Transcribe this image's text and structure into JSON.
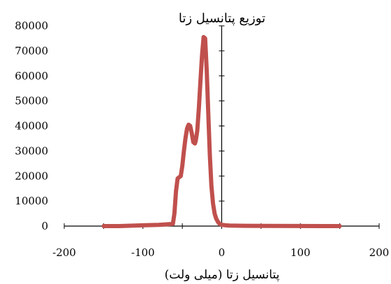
{
  "chart_data": {
    "type": "line",
    "title": "توزیع پتانسیل زتا",
    "xlabel": "پتانسیل زتا (میلی ولت)",
    "ylabel": "",
    "xlim": [
      -200,
      200
    ],
    "ylim": [
      0,
      80000
    ],
    "x_ticks": [
      "-200",
      "-100",
      "0",
      "100",
      "200"
    ],
    "y_ticks": [
      "0",
      "10000",
      "20000",
      "30000",
      "40000",
      "50000",
      "60000",
      "70000",
      "80000"
    ],
    "grid": false,
    "legend": "none",
    "series": [
      {
        "color": "#c0504d",
        "x": [
          -150,
          -130,
          -100,
          -80,
          -70,
          -65,
          -62,
          -60,
          -58,
          -56,
          -54,
          -52,
          -50,
          -48,
          -46,
          -44,
          -42,
          -40,
          -38,
          -36,
          -34,
          -33,
          -31,
          -29,
          -27,
          -25,
          -23,
          -21,
          -19,
          -17,
          -15,
          -13,
          -11,
          -9,
          -7,
          -5,
          -3,
          0,
          5,
          10,
          30,
          60,
          100,
          130,
          150
        ],
        "y": [
          0,
          0,
          300,
          500,
          700,
          800,
          900,
          5000,
          14000,
          19000,
          19500,
          20000,
          24000,
          30000,
          35000,
          39000,
          40500,
          40000,
          37000,
          33500,
          33000,
          34000,
          38000,
          47000,
          58000,
          68000,
          75500,
          75000,
          62000,
          45000,
          28000,
          16000,
          9000,
          5000,
          3000,
          1800,
          1000,
          500,
          300,
          200,
          100,
          50,
          20,
          0,
          0
        ]
      }
    ]
  }
}
